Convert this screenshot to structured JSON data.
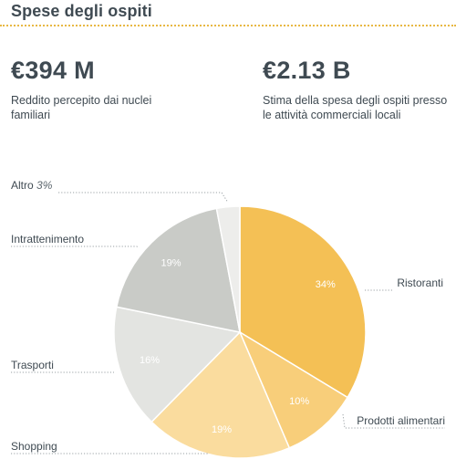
{
  "header": {
    "title": "Spese degli ospiti"
  },
  "stats": [
    {
      "value": "€394 M",
      "description": "Reddito percepito dai nuclei familiari"
    },
    {
      "value": "€2.13 B",
      "description": "Stima della spesa degli ospiti presso le attività commerciali locali"
    }
  ],
  "chart_data": {
    "type": "pie",
    "slices": [
      {
        "label": "Ristoranti",
        "value": 34,
        "value_label": "34%",
        "color": "#f4c055"
      },
      {
        "label": "Prodotti alimentari",
        "value": 10,
        "value_label": "10%",
        "color": "#f8ce7a"
      },
      {
        "label": "Shopping",
        "value": 19,
        "value_label": "19%",
        "color": "#fadc9e"
      },
      {
        "label": "Trasporti",
        "value": 16,
        "value_label": "16%",
        "color": "#e3e4e1"
      },
      {
        "label": "Intrattenimento",
        "value": 19,
        "value_label": "19%",
        "color": "#c9cbc7"
      },
      {
        "label": "Altro",
        "value": 3,
        "value_label": "3%",
        "color": "#ededeb"
      }
    ]
  }
}
